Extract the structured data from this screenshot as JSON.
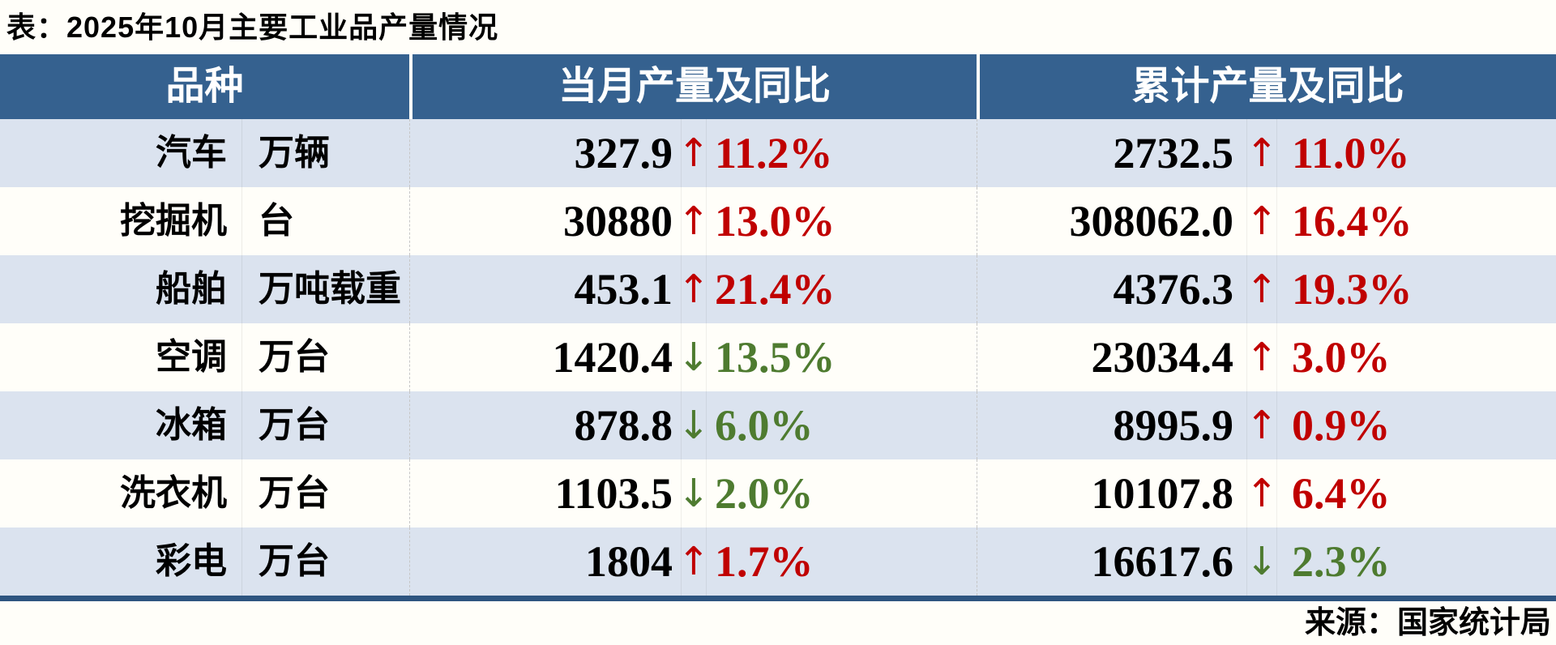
{
  "title": "表：2025年10月主要工业品产量情况",
  "footer": {
    "source": "来源：国家统计局"
  },
  "colors": {
    "header_bg": "#35618F",
    "row_alt_bg": "#DBE3EF",
    "row_bg": "#FFFEF9",
    "bottom_border": "#2E5580",
    "increase": "#C00000",
    "decrease": "#4E7B30"
  },
  "chart_data": {
    "type": "table",
    "title": "2025年10月主要工业品产量情况",
    "columns": [
      "品种",
      "当月产量及同比",
      "累计产量及同比"
    ],
    "rows": [
      {
        "name": "汽车",
        "unit": "万辆",
        "month": {
          "value": "327.9",
          "arrow": "↑",
          "trend": "up",
          "pct": "11.2%"
        },
        "cum": {
          "value": "2732.5",
          "arrow": "↑",
          "trend": "up",
          "pct": "11.0%"
        }
      },
      {
        "name": "挖掘机",
        "unit": "台",
        "month": {
          "value": "30880",
          "arrow": "↑",
          "trend": "up",
          "pct": "13.0%"
        },
        "cum": {
          "value": "308062.0",
          "arrow": "↑",
          "trend": "up",
          "pct": "16.4%"
        }
      },
      {
        "name": "船舶",
        "unit": "万吨载重",
        "month": {
          "value": "453.1",
          "arrow": "↑",
          "trend": "up",
          "pct": "21.4%"
        },
        "cum": {
          "value": "4376.3",
          "arrow": "↑",
          "trend": "up",
          "pct": "19.3%"
        }
      },
      {
        "name": "空调",
        "unit": "万台",
        "month": {
          "value": "1420.4",
          "arrow": "↓",
          "trend": "down",
          "pct": "13.5%"
        },
        "cum": {
          "value": "23034.4",
          "arrow": "↑",
          "trend": "up",
          "pct": "3.0%"
        }
      },
      {
        "name": "冰箱",
        "unit": "万台",
        "month": {
          "value": "878.8",
          "arrow": "↓",
          "trend": "down",
          "pct": "6.0%"
        },
        "cum": {
          "value": "8995.9",
          "arrow": "↑",
          "trend": "up",
          "pct": "0.9%"
        }
      },
      {
        "name": "洗衣机",
        "unit": "万台",
        "month": {
          "value": "1103.5",
          "arrow": "↓",
          "trend": "down",
          "pct": "2.0%"
        },
        "cum": {
          "value": "10107.8",
          "arrow": "↑",
          "trend": "up",
          "pct": "6.4%"
        }
      },
      {
        "name": "彩电",
        "unit": "万台",
        "month": {
          "value": "1804",
          "arrow": "↑",
          "trend": "up",
          "pct": "1.7%"
        },
        "cum": {
          "value": "16617.6",
          "arrow": "↓",
          "trend": "down",
          "pct": "2.3%"
        }
      }
    ]
  }
}
